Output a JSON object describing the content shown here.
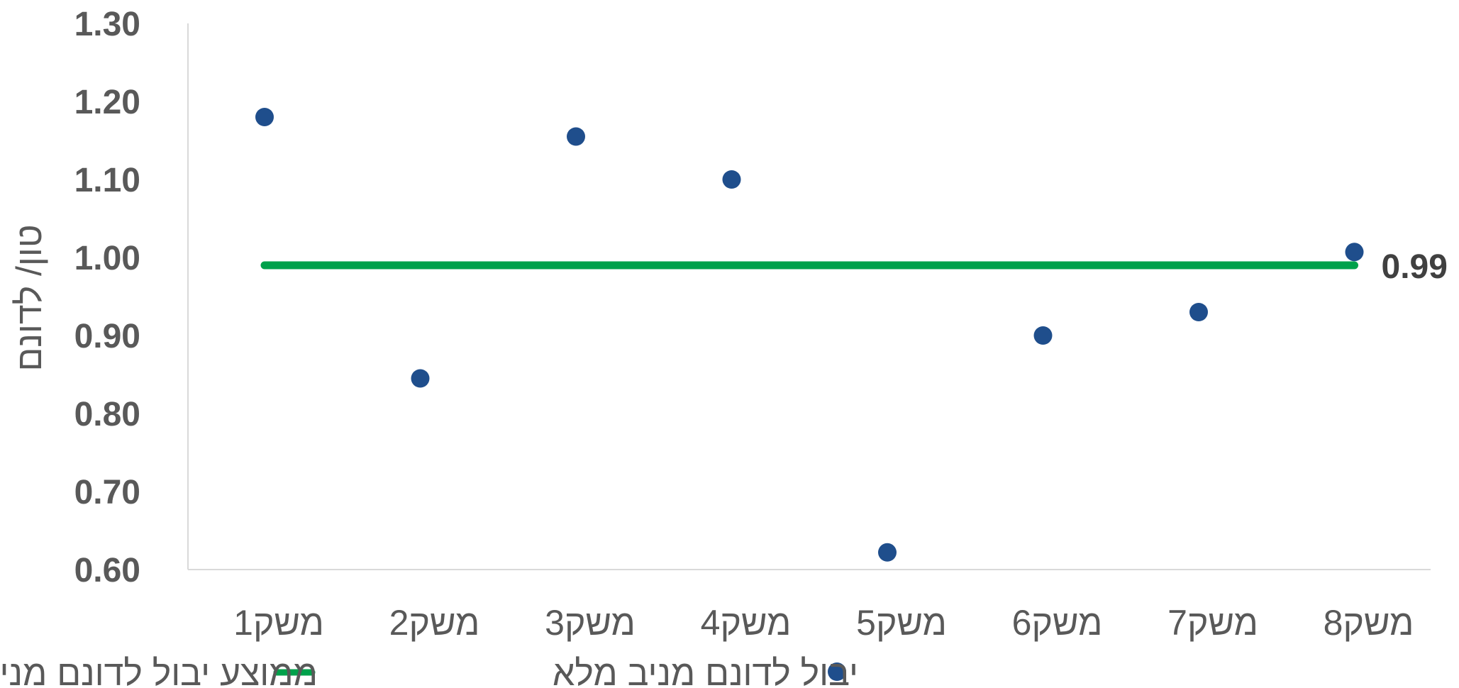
{
  "chart_data": {
    "type": "scatter",
    "title": "",
    "xlabel": "",
    "ylabel": "טון/ לדונם",
    "ylim": [
      0.6,
      1.3
    ],
    "yticks": [
      "1.30",
      "1.20",
      "1.10",
      "1.00",
      "0.90",
      "0.80",
      "0.70",
      "0.60"
    ],
    "categories": [
      "משק1",
      "משק2",
      "משק3",
      "משק4",
      "משק5",
      "משק6",
      "משק7",
      "משק8"
    ],
    "series": [
      {
        "name": "יבול לדונם מניב מלא",
        "type": "scatter",
        "color": "#1F4E8C",
        "values": [
          1.18,
          0.845,
          1.155,
          1.1,
          0.622,
          0.9,
          0.93,
          1.007
        ]
      },
      {
        "name": "ממוצע יבול לדונם מניב מלא",
        "type": "line",
        "color": "#00A14B",
        "values": [
          0.99,
          0.99,
          0.99,
          0.99,
          0.99,
          0.99,
          0.99,
          0.99
        ]
      }
    ],
    "annotations": [
      {
        "text": "0.99",
        "series": "ממוצע יבול לדונם מניב מלא",
        "at": "end"
      }
    ],
    "legend": {
      "position": "bottom"
    },
    "grid": false
  }
}
